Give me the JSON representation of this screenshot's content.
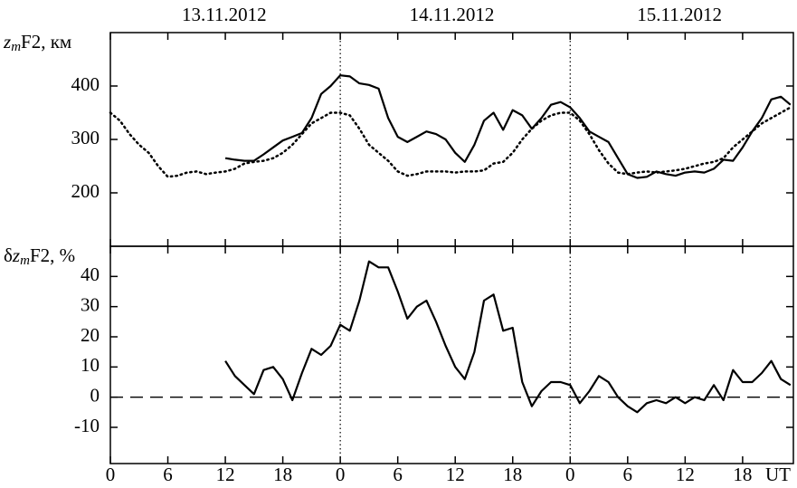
{
  "chart_data": [
    {
      "type": "line",
      "y_label_parts": [
        "z",
        "m",
        "F2, км"
      ],
      "day_labels": [
        "13.11.2012",
        "14.11.2012",
        "15.11.2012"
      ],
      "day_boundaries": [
        24,
        48
      ],
      "xlim": [
        0,
        71.3
      ],
      "ylim": [
        100,
        500
      ],
      "yticks": [
        200,
        300,
        400
      ],
      "series": [
        {
          "color": "#000000",
          "style": "solid",
          "x": [
            12,
            13,
            14,
            15,
            16,
            17,
            18,
            19,
            20,
            21,
            22,
            23,
            24,
            25,
            26,
            27,
            28,
            29,
            30,
            31,
            32,
            33,
            34,
            35,
            36,
            37,
            38,
            39,
            40,
            41,
            42,
            43,
            44,
            45,
            46,
            47,
            48,
            49,
            50,
            51,
            52,
            53,
            54,
            55,
            56,
            57,
            58,
            59,
            60,
            61,
            62,
            63,
            64,
            65,
            66,
            67,
            68,
            69,
            70,
            71
          ],
          "values": [
            265,
            262,
            260,
            260,
            272,
            285,
            298,
            305,
            312,
            340,
            385,
            400,
            420,
            418,
            405,
            402,
            395,
            340,
            305,
            295,
            305,
            315,
            310,
            300,
            275,
            258,
            290,
            335,
            350,
            318,
            355,
            345,
            320,
            340,
            365,
            370,
            360,
            340,
            315,
            305,
            295,
            265,
            235,
            228,
            230,
            240,
            235,
            232,
            238,
            240,
            238,
            245,
            262,
            260,
            285,
            315,
            340,
            375,
            380,
            365
          ]
        },
        {
          "color": "#000000",
          "style": "dotted",
          "x": [
            0,
            1,
            2,
            3,
            4,
            5,
            6,
            7,
            8,
            9,
            10,
            11,
            12,
            13,
            14,
            15,
            16,
            17,
            18,
            19,
            20,
            21,
            22,
            23,
            24,
            25,
            26,
            27,
            28,
            29,
            30,
            31,
            32,
            33,
            34,
            35,
            36,
            37,
            38,
            39,
            40,
            41,
            42,
            43,
            44,
            45,
            46,
            47,
            48,
            49,
            50,
            51,
            52,
            53,
            54,
            55,
            56,
            57,
            58,
            59,
            60,
            61,
            62,
            63,
            64,
            65,
            66,
            67,
            68,
            69,
            70,
            71
          ],
          "values": [
            350,
            335,
            310,
            290,
            275,
            250,
            230,
            232,
            238,
            240,
            235,
            238,
            240,
            245,
            255,
            258,
            260,
            265,
            275,
            290,
            310,
            330,
            340,
            350,
            350,
            345,
            320,
            290,
            275,
            260,
            240,
            232,
            235,
            240,
            240,
            240,
            238,
            240,
            240,
            242,
            255,
            258,
            275,
            300,
            320,
            335,
            345,
            350,
            350,
            335,
            310,
            280,
            255,
            238,
            235,
            238,
            240,
            238,
            240,
            242,
            245,
            250,
            255,
            258,
            265,
            285,
            300,
            315,
            330,
            340,
            350,
            360
          ]
        }
      ]
    },
    {
      "type": "line",
      "y_label_parts": [
        "δ",
        "z",
        "m",
        "F2, %"
      ],
      "x_label": "UT",
      "hline": 0,
      "xlim": [
        0,
        71.3
      ],
      "ylim": [
        -22,
        50
      ],
      "yticks": [
        -10,
        0,
        10,
        20,
        30,
        40
      ],
      "xticks": [
        0,
        6,
        12,
        18,
        {
          "value": 24,
          "label": "0"
        },
        {
          "value": 30,
          "label": "6"
        },
        {
          "value": 36,
          "label": "12"
        },
        {
          "value": 42,
          "label": "18"
        },
        {
          "value": 48,
          "label": "0"
        },
        {
          "value": 54,
          "label": "6"
        },
        {
          "value": 60,
          "label": "12"
        },
        {
          "value": 66,
          "label": "18"
        }
      ],
      "series": [
        {
          "color": "#000000",
          "style": "solid",
          "x": [
            12,
            13,
            14,
            15,
            16,
            17,
            18,
            19,
            20,
            21,
            22,
            23,
            24,
            25,
            26,
            27,
            28,
            29,
            30,
            31,
            32,
            33,
            34,
            35,
            36,
            37,
            38,
            39,
            40,
            41,
            42,
            43,
            44,
            45,
            46,
            47,
            48,
            49,
            50,
            51,
            52,
            53,
            54,
            55,
            56,
            57,
            58,
            59,
            60,
            61,
            62,
            63,
            64,
            65,
            66,
            67,
            68,
            69,
            70,
            71
          ],
          "values": [
            12,
            7,
            4,
            1,
            9,
            10,
            6,
            -1,
            8,
            16,
            14,
            17,
            24,
            22,
            32,
            45,
            43,
            43,
            35,
            26,
            30,
            32,
            25,
            17,
            10,
            6,
            15,
            32,
            34,
            22,
            23,
            5,
            -3,
            2,
            5,
            5,
            4,
            -2,
            2,
            7,
            5,
            0,
            -3,
            -5,
            -2,
            -1,
            -2,
            0,
            -2,
            0,
            -1,
            4,
            -1,
            9,
            5,
            5,
            8,
            12,
            6,
            4
          ]
        }
      ]
    }
  ]
}
